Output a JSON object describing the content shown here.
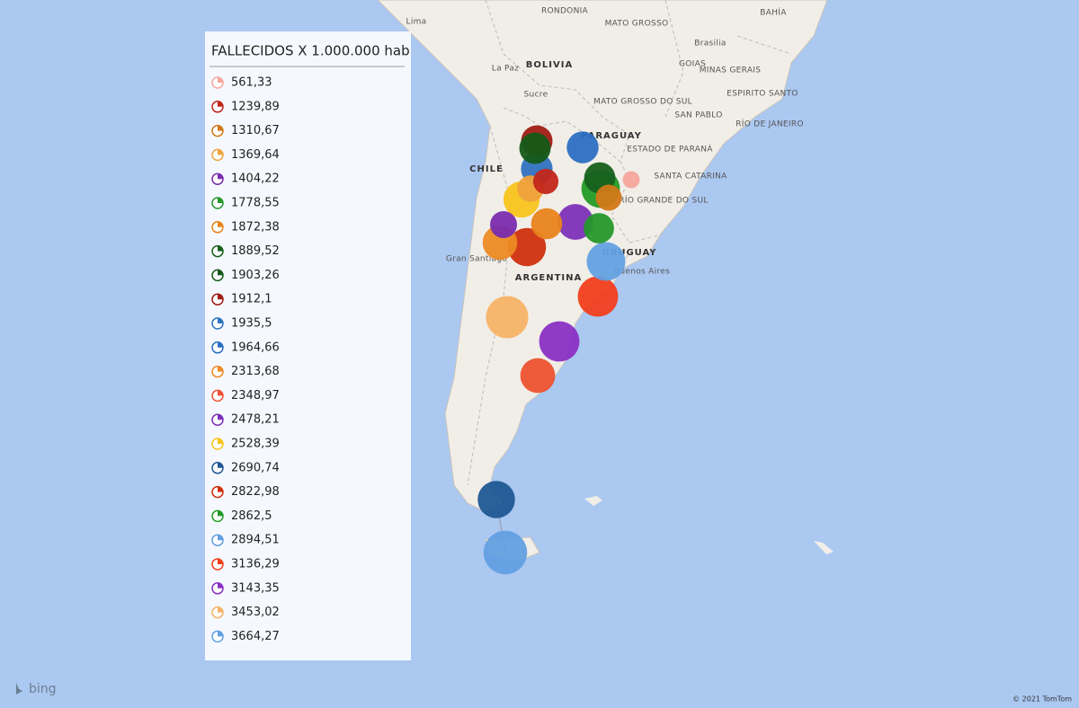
{
  "legend": {
    "title": "FALLECIDOS X 1.000.000 hab",
    "items": [
      {
        "value": 561.33,
        "label": "561,33",
        "color": "#f6a59c"
      },
      {
        "value": 1239.89,
        "label": "1239,89",
        "color": "#c2261a"
      },
      {
        "value": 1310.67,
        "label": "1310,67",
        "color": "#d27818"
      },
      {
        "value": 1369.64,
        "label": "1369,64",
        "color": "#f0a23c"
      },
      {
        "value": 1404.22,
        "label": "1404,22",
        "color": "#7a2cae"
      },
      {
        "value": 1778.55,
        "label": "1778,55",
        "color": "#24982a"
      },
      {
        "value": 1872.38,
        "label": "1872,38",
        "color": "#e8831c"
      },
      {
        "value": 1889.52,
        "label": "1889,52",
        "color": "#17601c"
      },
      {
        "value": 1903.26,
        "label": "1903,26",
        "color": "#145a18"
      },
      {
        "value": 1912.1,
        "label": "1912,1",
        "color": "#a01c16"
      },
      {
        "value": 1935.5,
        "label": "1935,5",
        "color": "#2f72c0"
      },
      {
        "value": 1964.66,
        "label": "1964,66",
        "color": "#2b6fc2"
      },
      {
        "value": 2313.68,
        "label": "2313,68",
        "color": "#ec8a24"
      },
      {
        "value": 2348.97,
        "label": "2348,97",
        "color": "#ec5230"
      },
      {
        "value": 2478.21,
        "label": "2478,21",
        "color": "#7d30b8"
      },
      {
        "value": 2528.39,
        "label": "2528,39",
        "color": "#f8c41c"
      },
      {
        "value": 2690.74,
        "label": "2690,74",
        "color": "#1f5894"
      },
      {
        "value": 2822.98,
        "label": "2822,98",
        "color": "#d0300e"
      },
      {
        "value": 2862.5,
        "label": "2862,5",
        "color": "#249a26"
      },
      {
        "value": 2894.51,
        "label": "2894,51",
        "color": "#63a0e2"
      },
      {
        "value": 3136.29,
        "label": "3136,29",
        "color": "#f23e1c"
      },
      {
        "value": 3143.35,
        "label": "3143,35",
        "color": "#8a30c4"
      },
      {
        "value": 3453.02,
        "label": "3453,02",
        "color": "#f6b266"
      },
      {
        "value": 3664.27,
        "label": "3664,27",
        "color": "#62a0e2"
      }
    ]
  },
  "map_labels": [
    "Lima",
    "RONDONIA",
    "MATO GROSSO",
    "BAHÍA",
    "Brasilia",
    "La Paz",
    "BOLIVIA",
    "GOIAS",
    "MINAS GERAIS",
    "Sucre",
    "MATO GROSSO DO SUL",
    "ESPIRITO SANTO",
    "SAN PABLO",
    "RÍO DE JANEIRO",
    "CHILE",
    "PARAGUAY",
    "ESTADO DE PARANÁ",
    "SANTA CATARINA",
    "RÍO GRANDE DO SUL",
    "Gran Santiago",
    "URUGUAY",
    "Buenos Aires",
    "ARGENTINA"
  ],
  "logo": "bing",
  "copyright": "© 2021 TomTom"
}
